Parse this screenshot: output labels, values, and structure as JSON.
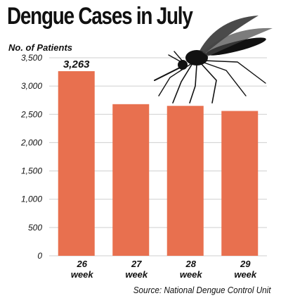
{
  "title": "Dengue Cases in July",
  "source": "Source: National Dengue Control Unit",
  "illustration_icon": "mosquito-icon",
  "chart_data": {
    "type": "bar",
    "title": "Dengue Cases in July",
    "ylabel": "No. of Patients",
    "xlabel": "",
    "categories": [
      "26 week",
      "27 week",
      "28 week",
      "29 week"
    ],
    "category_lines": [
      [
        "26",
        "week"
      ],
      [
        "27",
        "week"
      ],
      [
        "28",
        "week"
      ],
      [
        "29",
        "week"
      ]
    ],
    "values": [
      3263,
      2680,
      2650,
      2560
    ],
    "value_labels": [
      "3,263",
      "",
      "",
      ""
    ],
    "ylim": [
      0,
      3500
    ],
    "yticks": [
      0,
      500,
      1000,
      1500,
      2000,
      2500,
      3000,
      3500
    ],
    "ytick_labels": [
      "0",
      "500",
      "1,000",
      "1,500",
      "2,000",
      "2,500",
      "3,000",
      "3,500"
    ],
    "grid": true,
    "bar_color": "#e8704f",
    "grid_color": "#cfcfcf"
  }
}
